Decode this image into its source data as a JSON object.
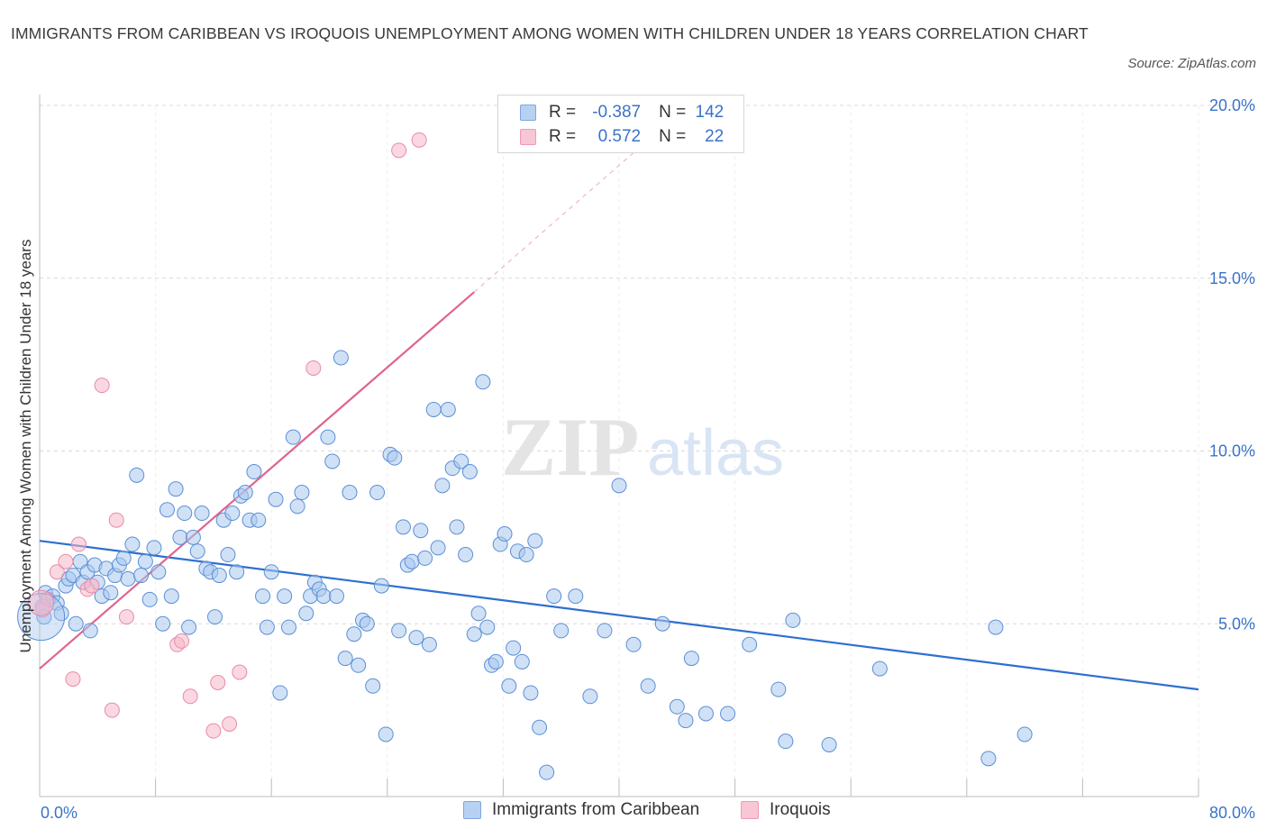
{
  "title": "IMMIGRANTS FROM CARIBBEAN VS IROQUOIS UNEMPLOYMENT AMONG WOMEN WITH CHILDREN UNDER 18 YEARS CORRELATION CHART",
  "source": "Source: ZipAtlas.com",
  "watermark": {
    "part1": "ZIP",
    "part2": "atlas"
  },
  "colors": {
    "blue_fill": "#a9c8ef",
    "blue_stroke": "#5b8fd6",
    "blue_line": "#2d6fd0",
    "pink_fill": "#f5b8c9",
    "pink_stroke": "#e98aa8",
    "pink_line": "#e0648e",
    "grid": "#d9d9d9",
    "axis_text": "#3a73c8"
  },
  "legend_stats": [
    {
      "r_label": "R =",
      "r_value": "-0.387",
      "n_label": "N =",
      "n_value": "142",
      "color": "blue"
    },
    {
      "r_label": "R =",
      "r_value": "0.572",
      "n_label": "N =",
      "n_value": "22",
      "color": "pink"
    }
  ],
  "chart_data": {
    "type": "scatter",
    "ylabel": "Unemployment Among Women with Children Under 18 years",
    "xlim": [
      0,
      80
    ],
    "ylim": [
      0,
      20
    ],
    "x_tick_labels": [
      "0.0%",
      "80.0%"
    ],
    "y_tick_labels": [
      "20.0%",
      "15.0%",
      "10.0%",
      "5.0%"
    ],
    "y_ticks": [
      20,
      15,
      10,
      5
    ],
    "grid": true,
    "legend_position": "bottom",
    "series": [
      {
        "name": "Immigrants from Caribbean",
        "color": "blue",
        "trend": {
          "x": [
            0,
            80
          ],
          "y": [
            7.4,
            3.1
          ]
        },
        "points": [
          [
            0.2,
            5.5
          ],
          [
            0.4,
            5.9
          ],
          [
            0.6,
            5.7
          ],
          [
            0.9,
            5.8
          ],
          [
            1.2,
            5.6
          ],
          [
            1.5,
            5.3
          ],
          [
            1.8,
            6.1
          ],
          [
            2.0,
            6.3
          ],
          [
            2.3,
            6.4
          ],
          [
            2.5,
            5.0
          ],
          [
            2.8,
            6.8
          ],
          [
            3.0,
            6.2
          ],
          [
            3.3,
            6.5
          ],
          [
            3.5,
            4.8
          ],
          [
            3.8,
            6.7
          ],
          [
            4.0,
            6.2
          ],
          [
            4.3,
            5.8
          ],
          [
            4.6,
            6.6
          ],
          [
            4.9,
            5.9
          ],
          [
            5.2,
            6.4
          ],
          [
            5.5,
            6.7
          ],
          [
            5.8,
            6.9
          ],
          [
            6.1,
            6.3
          ],
          [
            6.4,
            7.3
          ],
          [
            6.7,
            9.3
          ],
          [
            7.0,
            6.4
          ],
          [
            7.3,
            6.8
          ],
          [
            7.6,
            5.7
          ],
          [
            7.9,
            7.2
          ],
          [
            8.2,
            6.5
          ],
          [
            8.5,
            5.0
          ],
          [
            8.8,
            8.3
          ],
          [
            9.1,
            5.8
          ],
          [
            9.4,
            8.9
          ],
          [
            9.7,
            7.5
          ],
          [
            10.0,
            8.2
          ],
          [
            10.3,
            4.9
          ],
          [
            10.6,
            7.5
          ],
          [
            10.9,
            7.1
          ],
          [
            11.2,
            8.2
          ],
          [
            11.5,
            6.6
          ],
          [
            11.8,
            6.5
          ],
          [
            12.1,
            5.2
          ],
          [
            12.4,
            6.4
          ],
          [
            12.7,
            8.0
          ],
          [
            13.0,
            7.0
          ],
          [
            13.3,
            8.2
          ],
          [
            13.6,
            6.5
          ],
          [
            13.9,
            8.7
          ],
          [
            14.2,
            8.8
          ],
          [
            14.5,
            8.0
          ],
          [
            14.8,
            9.4
          ],
          [
            15.1,
            8.0
          ],
          [
            15.4,
            5.8
          ],
          [
            15.7,
            4.9
          ],
          [
            16.0,
            6.5
          ],
          [
            16.3,
            8.6
          ],
          [
            16.6,
            3.0
          ],
          [
            16.9,
            5.8
          ],
          [
            17.2,
            4.9
          ],
          [
            17.5,
            10.4
          ],
          [
            17.8,
            8.4
          ],
          [
            18.1,
            8.8
          ],
          [
            18.4,
            5.3
          ],
          [
            18.7,
            5.8
          ],
          [
            19.0,
            6.2
          ],
          [
            19.3,
            6.0
          ],
          [
            19.6,
            5.8
          ],
          [
            19.9,
            10.4
          ],
          [
            20.2,
            9.7
          ],
          [
            20.5,
            5.8
          ],
          [
            20.8,
            12.7
          ],
          [
            21.1,
            4.0
          ],
          [
            21.4,
            8.8
          ],
          [
            21.7,
            4.7
          ],
          [
            22.0,
            3.8
          ],
          [
            22.3,
            5.1
          ],
          [
            22.6,
            5.0
          ],
          [
            23.0,
            3.2
          ],
          [
            23.3,
            8.8
          ],
          [
            23.6,
            6.1
          ],
          [
            23.9,
            1.8
          ],
          [
            24.2,
            9.9
          ],
          [
            24.5,
            9.8
          ],
          [
            24.8,
            4.8
          ],
          [
            25.1,
            7.8
          ],
          [
            25.4,
            6.7
          ],
          [
            25.7,
            6.8
          ],
          [
            26.0,
            4.6
          ],
          [
            26.3,
            7.7
          ],
          [
            26.6,
            6.9
          ],
          [
            26.9,
            4.4
          ],
          [
            27.2,
            11.2
          ],
          [
            27.5,
            7.2
          ],
          [
            27.8,
            9.0
          ],
          [
            28.2,
            11.2
          ],
          [
            28.5,
            9.5
          ],
          [
            28.8,
            7.8
          ],
          [
            29.1,
            9.7
          ],
          [
            29.4,
            7.0
          ],
          [
            29.7,
            9.4
          ],
          [
            30.0,
            4.7
          ],
          [
            30.3,
            5.3
          ],
          [
            30.6,
            12.0
          ],
          [
            30.9,
            4.9
          ],
          [
            31.2,
            3.8
          ],
          [
            31.5,
            3.9
          ],
          [
            31.8,
            7.3
          ],
          [
            32.1,
            7.6
          ],
          [
            32.4,
            3.2
          ],
          [
            32.7,
            4.3
          ],
          [
            33.0,
            7.1
          ],
          [
            33.3,
            3.9
          ],
          [
            33.6,
            7.0
          ],
          [
            33.9,
            3.0
          ],
          [
            34.2,
            7.4
          ],
          [
            34.5,
            2.0
          ],
          [
            35.0,
            0.7
          ],
          [
            35.5,
            5.8
          ],
          [
            36.0,
            4.8
          ],
          [
            37.0,
            5.8
          ],
          [
            38.0,
            2.9
          ],
          [
            39.0,
            4.8
          ],
          [
            40.0,
            9.0
          ],
          [
            41.0,
            4.4
          ],
          [
            42.0,
            3.2
          ],
          [
            43.0,
            5.0
          ],
          [
            44.0,
            2.6
          ],
          [
            44.6,
            2.2
          ],
          [
            45.0,
            4.0
          ],
          [
            46.0,
            2.4
          ],
          [
            47.5,
            2.4
          ],
          [
            49.0,
            4.4
          ],
          [
            51.0,
            3.1
          ],
          [
            51.5,
            1.6
          ],
          [
            52.0,
            5.1
          ],
          [
            54.5,
            1.5
          ],
          [
            58.0,
            3.7
          ],
          [
            65.5,
            1.1
          ],
          [
            66.0,
            4.9
          ],
          [
            68.0,
            1.8
          ],
          [
            0.3,
            5.2
          ]
        ]
      },
      {
        "name": "Iroquois",
        "color": "pink",
        "trend": {
          "x": [
            0,
            30
          ],
          "y": [
            3.7,
            14.6
          ],
          "extension": {
            "x": [
              30,
              42
            ],
            "y": [
              14.6,
              19.0
            ]
          }
        },
        "points": [
          [
            0.5,
            5.7
          ],
          [
            1.2,
            6.5
          ],
          [
            1.8,
            6.8
          ],
          [
            2.3,
            3.4
          ],
          [
            2.7,
            7.3
          ],
          [
            3.3,
            6.0
          ],
          [
            3.6,
            6.1
          ],
          [
            4.3,
            11.9
          ],
          [
            5.0,
            2.5
          ],
          [
            5.3,
            8.0
          ],
          [
            6.0,
            5.2
          ],
          [
            9.5,
            4.4
          ],
          [
            9.8,
            4.5
          ],
          [
            10.4,
            2.9
          ],
          [
            12.0,
            1.9
          ],
          [
            12.3,
            3.3
          ],
          [
            13.1,
            2.1
          ],
          [
            13.8,
            3.6
          ],
          [
            18.9,
            12.4
          ],
          [
            24.8,
            18.7
          ],
          [
            26.2,
            19.0
          ],
          [
            0.2,
            5.4
          ]
        ]
      }
    ]
  }
}
